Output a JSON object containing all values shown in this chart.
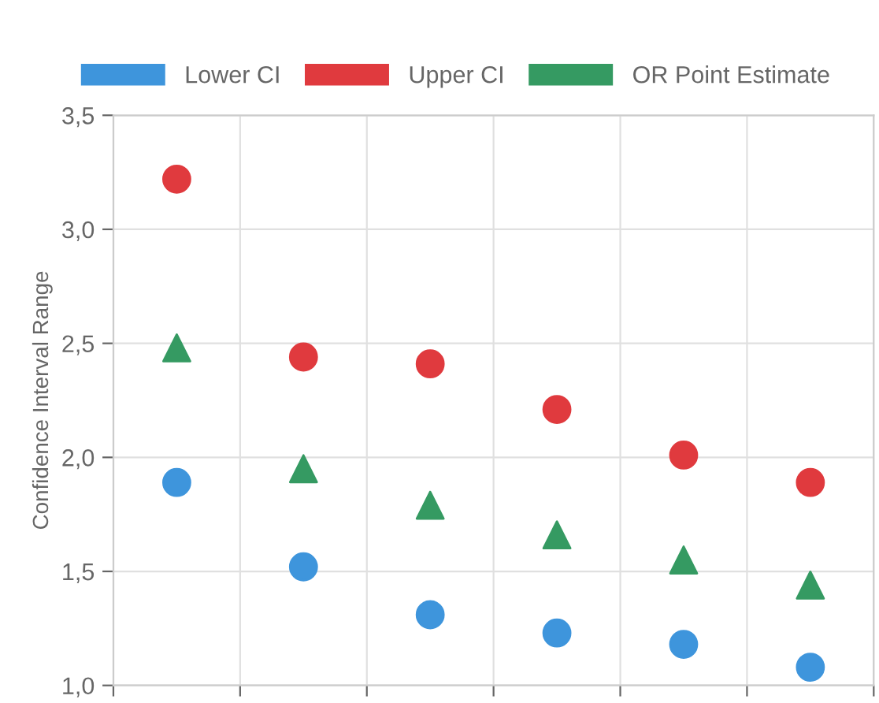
{
  "chart_data": {
    "type": "scatter",
    "ylabel": "Confidence Interval Range",
    "categories": [
      null,
      null,
      null,
      null,
      null,
      null
    ],
    "series": [
      {
        "name": "Lower CI",
        "color": "#3e95dc",
        "marker": "circle",
        "values": [
          1.89,
          1.52,
          1.31,
          1.23,
          1.18,
          1.08
        ]
      },
      {
        "name": "Upper CI",
        "color": "#e03a3e",
        "marker": "circle",
        "values": [
          3.22,
          2.44,
          2.41,
          2.21,
          2.01,
          1.89
        ]
      },
      {
        "name": "OR Point Estimate",
        "color": "#359a62",
        "marker": "triangle",
        "values": [
          2.48,
          1.95,
          1.79,
          1.66,
          1.55,
          1.44
        ]
      }
    ],
    "ylim": [
      1.0,
      3.5
    ],
    "yticks": [
      {
        "value": 1.0,
        "label": "1,0"
      },
      {
        "value": 1.5,
        "label": "1,5"
      },
      {
        "value": 2.0,
        "label": "2,0"
      },
      {
        "value": 2.5,
        "label": "2,5"
      },
      {
        "value": 3.0,
        "label": "3,0"
      },
      {
        "value": 3.5,
        "label": "3,5"
      }
    ],
    "grid": true,
    "legend": "top"
  }
}
